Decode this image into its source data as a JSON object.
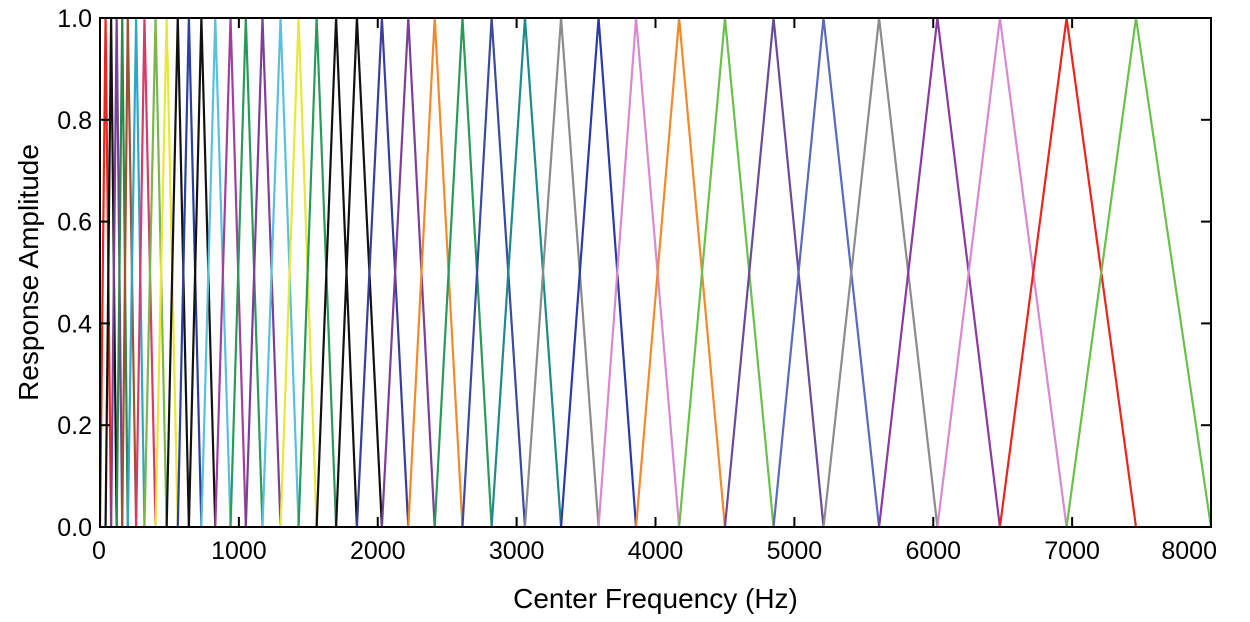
{
  "chart_data": {
    "type": "line",
    "title": "",
    "xlabel": "Center Frequency (Hz)",
    "ylabel": "Response Amplitude",
    "xlim": [
      0,
      8000
    ],
    "ylim": [
      0,
      1
    ],
    "grid": false,
    "legend": "none",
    "x_ticks": [
      "0",
      "1000",
      "2000",
      "3000",
      "4000",
      "5000",
      "6000",
      "7000",
      "8000"
    ],
    "y_ticks": [
      "0.0",
      "0.2",
      "0.4",
      "0.6",
      "0.8",
      "1.0"
    ],
    "filterbank": {
      "shape": "triangular",
      "peak_value": 1.0,
      "edges_hz": [
        0,
        40,
        80,
        120,
        160,
        200,
        260,
        320,
        400,
        480,
        560,
        640,
        730,
        830,
        940,
        1050,
        1170,
        1300,
        1430,
        1560,
        1700,
        1850,
        2030,
        2220,
        2410,
        2610,
        2820,
        3060,
        3320,
        3590,
        3860,
        4170,
        4500,
        4850,
        5210,
        5610,
        6030,
        6480,
        6960,
        7460,
        8000
      ]
    },
    "series_colors": [
      "#e8261f",
      "#111111",
      "#7b3f9a",
      "#2a8a4a",
      "#a0522d",
      "#2ca8c8",
      "#d83a6a",
      "#7ab648",
      "#e8e83a",
      "#111111",
      "#2b3f9e",
      "#111111",
      "#5bc0de",
      "#a0409a",
      "#2a9a5a",
      "#7b3f9a",
      "#5bc0de",
      "#e8e83a",
      "#2a9a5a",
      "#111111",
      "#111111",
      "#3b3d9e",
      "#7b3f9a",
      "#f08a2a",
      "#2a9a5a",
      "#3b4a9e",
      "#1f8a8a",
      "#8c8c8c",
      "#2b3aa8",
      "#d88ad0",
      "#f08a2a",
      "#6ac04a",
      "#6a4a9a",
      "#5a6ac0",
      "#8c8c8c",
      "#8a3aa0",
      "#d88ad0",
      "#e8261f",
      "#6ac04a"
    ]
  }
}
